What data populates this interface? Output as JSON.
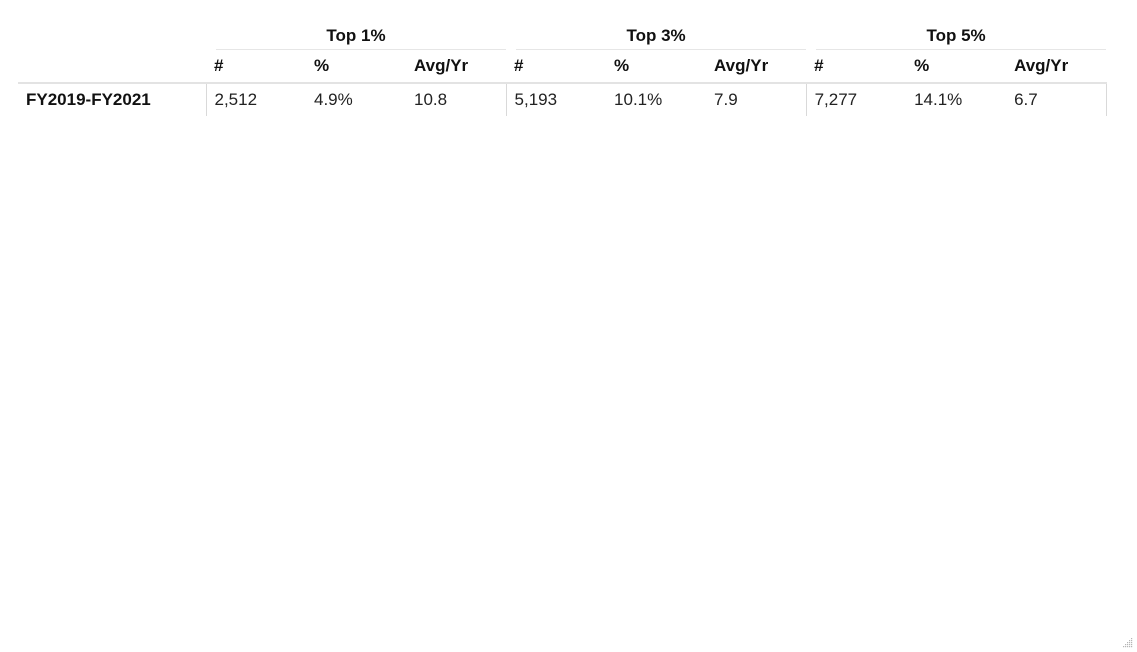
{
  "table": {
    "groups": [
      "Top 1%",
      "Top 3%",
      "Top 5%"
    ],
    "subheaders": [
      "#",
      "%",
      "Avg/Yr"
    ],
    "rows": [
      {
        "label": "FY2019-FY2021",
        "values": [
          "2,512",
          "4.9%",
          "10.8",
          "5,193",
          "10.1%",
          "7.9",
          "7,277",
          "14.1%",
          "6.7"
        ]
      }
    ]
  }
}
